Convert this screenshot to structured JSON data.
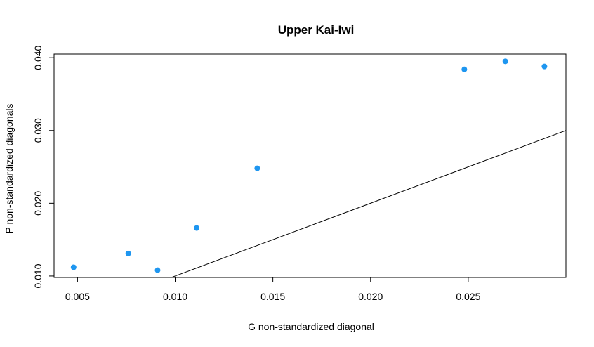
{
  "chart_data": {
    "type": "scatter",
    "title": "Upper Kai-Iwi",
    "xlabel": "G non-standardized diagonal",
    "ylabel": "P non-standardized diagonals",
    "xlim": [
      0.0038,
      0.03
    ],
    "ylim": [
      0.0098,
      0.0405
    ],
    "x_ticks": [
      0.005,
      0.01,
      0.015,
      0.02,
      0.025
    ],
    "x_tick_labels": [
      "0.005",
      "0.010",
      "0.015",
      "0.020",
      "0.025"
    ],
    "y_ticks": [
      0.01,
      0.02,
      0.03,
      0.04
    ],
    "y_tick_labels": [
      "0.010",
      "0.020",
      "0.030",
      "0.040"
    ],
    "grid": false,
    "point_color": "#1e96f0",
    "line_color": "#000000",
    "points": [
      {
        "x": 0.0048,
        "y": 0.0112
      },
      {
        "x": 0.0076,
        "y": 0.0131
      },
      {
        "x": 0.0091,
        "y": 0.0108
      },
      {
        "x": 0.0111,
        "y": 0.0166
      },
      {
        "x": 0.0142,
        "y": 0.0248
      },
      {
        "x": 0.0248,
        "y": 0.0384
      },
      {
        "x": 0.0269,
        "y": 0.0395
      },
      {
        "x": 0.0289,
        "y": 0.0388
      }
    ],
    "reference_line": {
      "type": "identity",
      "slope": 1,
      "intercept": 0
    }
  }
}
